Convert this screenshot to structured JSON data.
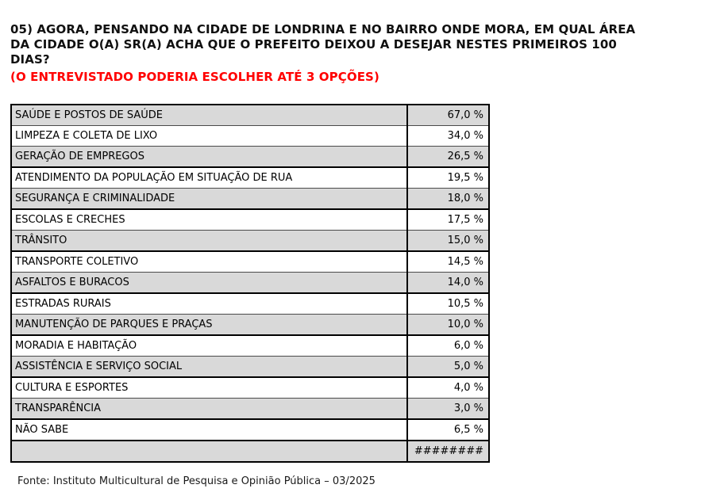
{
  "question": {
    "title_lines": [
      "05) AGORA, PENSANDO NA CIDADE DE LONDRINA E NO BAIRRO ONDE MORA, EM QUAL ÁREA",
      "DA CIDADE O(A) SR(A) ACHA QUE O PREFEITO DEIXOU A DESEJAR NESTES PRIMEIROS 100",
      "DIAS?"
    ],
    "full_title": "05) AGORA, PENSANDO NA CIDADE DE LONDRINA E NO BAIRRO ONDE MORA, EM QUAL ÁREA DA CIDADE O(A) SR(A) ACHA QUE O PREFEITO DEIXOU A DESEJAR NESTES PRIMEIROS 100 DIAS?",
    "instruction": "(O ENTREVISTADO PODERIA ESCOLHER ATÉ 3 OPÇÕES)"
  },
  "table": {
    "rows": [
      {
        "label": "SAÚDE E POSTOS DE SAÚDE",
        "value": "67,0 %",
        "shaded": true,
        "group_end": false
      },
      {
        "label": "LIMPEZA E COLETA DE LIXO",
        "value": "34,0 %",
        "shaded": false,
        "group_end": false
      },
      {
        "label": "GERAÇÃO DE EMPREGOS",
        "value": "26,5 %",
        "shaded": true,
        "group_end": true
      },
      {
        "label": "ATENDIMENTO DA POPULAÇÃO EM SITUAÇÃO DE RUA",
        "value": "19,5 %",
        "shaded": false,
        "group_end": false
      },
      {
        "label": "SEGURANÇA E CRIMINALIDADE",
        "value": "18,0 %",
        "shaded": true,
        "group_end": true
      },
      {
        "label": "ESCOLAS E CRECHES",
        "value": "17,5 %",
        "shaded": false,
        "group_end": false
      },
      {
        "label": "TRÂNSITO",
        "value": "15,0 %",
        "shaded": true,
        "group_end": true
      },
      {
        "label": "TRANSPORTE COLETIVO",
        "value": "14,5 %",
        "shaded": false,
        "group_end": false
      },
      {
        "label": "ASFALTOS E BURACOS",
        "value": "14,0 %",
        "shaded": true,
        "group_end": true
      },
      {
        "label": "ESTRADAS RURAIS",
        "value": "10,5 %",
        "shaded": false,
        "group_end": false
      },
      {
        "label": "MANUTENÇÃO DE PARQUES E PRAÇAS",
        "value": "10,0 %",
        "shaded": true,
        "group_end": true
      },
      {
        "label": "MORADIA E HABITAÇÃO",
        "value": "6,0 %",
        "shaded": false,
        "group_end": false
      },
      {
        "label": "ASSISTÊNCIA E SERVIÇO SOCIAL",
        "value": "5,0 %",
        "shaded": true,
        "group_end": true
      },
      {
        "label": "CULTURA E ESPORTES",
        "value": "4,0 %",
        "shaded": false,
        "group_end": false
      },
      {
        "label": "TRANSPARÊNCIA",
        "value": "3,0 %",
        "shaded": true,
        "group_end": true
      },
      {
        "label": "NÃO SABE",
        "value": "6,5 %",
        "shaded": false,
        "group_end": true
      },
      {
        "label": "",
        "value": "########",
        "shaded": true,
        "group_end": false
      }
    ]
  },
  "chart_data": {
    "type": "table",
    "title": "05) AGORA, PENSANDO NA CIDADE DE LONDRINA E NO BAIRRO ONDE MORA, EM QUAL ÁREA DA CIDADE O(A) SR(A) ACHA QUE O PREFEITO DEIXOU A DESEJAR NESTES PRIMEIROS 100 DIAS?",
    "subtitle": "(O ENTREVISTADO PODERIA ESCOLHER ATÉ 3 OPÇÕES)",
    "categories": [
      "SAÚDE E POSTOS DE SAÚDE",
      "LIMPEZA E COLETA DE LIXO",
      "GERAÇÃO DE EMPREGOS",
      "ATENDIMENTO DA POPULAÇÃO EM SITUAÇÃO DE RUA",
      "SEGURANÇA E CRIMINALIDADE",
      "ESCOLAS E CRECHES",
      "TRÂNSITO",
      "TRANSPORTE COLETIVO",
      "ASFALTOS E BURACOS",
      "ESTRADAS RURAIS",
      "MANUTENÇÃO DE PARQUES E PRAÇAS",
      "MORADIA E HABITAÇÃO",
      "ASSISTÊNCIA E SERVIÇO SOCIAL",
      "CULTURA E ESPORTES",
      "TRANSPARÊNCIA",
      "NÃO SABE"
    ],
    "values": [
      67.0,
      34.0,
      26.5,
      19.5,
      18.0,
      17.5,
      15.0,
      14.5,
      14.0,
      10.5,
      10.0,
      6.0,
      5.0,
      4.0,
      3.0,
      6.5
    ],
    "value_unit": "%",
    "value_format": "comma-decimal, space before %",
    "overflow_cell_text": "########"
  },
  "footer": {
    "source": "Fonte: Instituto Multicultural de Pesquisa e Opinião Pública – 03/2025"
  },
  "colors": {
    "shaded_row": "#d9d9d9",
    "table_border": "#000000",
    "thin_row_border": "#4a4a4a",
    "instruction_red": "#ff0000",
    "text": "#000000",
    "background": "#ffffff"
  }
}
